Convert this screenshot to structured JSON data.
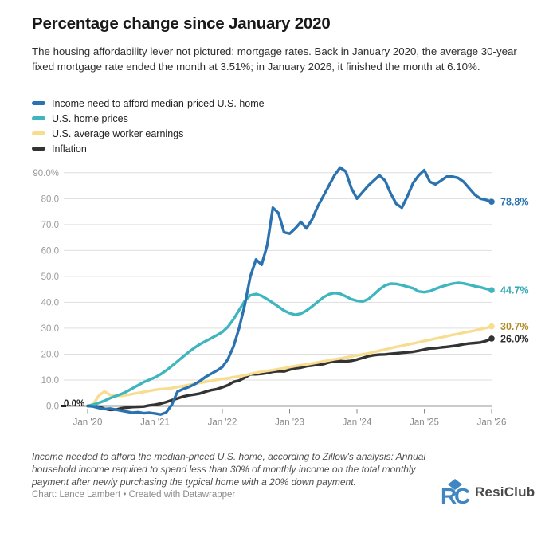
{
  "header": {
    "title": "Percentage change since January 2020",
    "subtitle": "The housing affordability lever not pictured: mortgage rates. Back in January 2020, the average 30-year fixed mortgage rate ended the month at 3.51%; in January 2026, it finished the month at 6.10%."
  },
  "legend": {
    "items": [
      {
        "label": "Income need to afford median-priced U.S. home",
        "color": "#2a72b0"
      },
      {
        "label": "U.S. home prices",
        "color": "#3eb5bf"
      },
      {
        "label": "U.S. average worker earnings",
        "color": "#f8dd90"
      },
      {
        "label": "Inflation",
        "color": "#333333"
      }
    ]
  },
  "chart_data": {
    "type": "line",
    "title": "Percentage change since January 2020",
    "x_unit": "months since Jan 2020",
    "x_tick_labels": [
      "Jan '20",
      "Jan '21",
      "Jan '22",
      "Jan '23",
      "Jan '24",
      "Jan '25",
      "Jan '26"
    ],
    "y_tick_labels": [
      "90.0%",
      "80.0",
      "70.0",
      "60.0",
      "50.0",
      "40.0",
      "30.0",
      "20.0",
      "10.0",
      "0.0"
    ],
    "ylim": [
      0,
      90
    ],
    "grid": true,
    "legend_position": "top-left",
    "start_label": "0.0%",
    "series": [
      {
        "name": "Income need to afford median-priced U.S. home",
        "color": "#2a72b0",
        "label_color": "#2a72b0",
        "end_label": "78.8%",
        "values": [
          0,
          -0.2,
          -0.8,
          -1.2,
          -1.0,
          -1.4,
          -1.8,
          -2.2,
          -2.6,
          -2.4,
          -2.8,
          -2.6,
          -2.9,
          -3.3,
          -2.5,
          0.5,
          5.5,
          6.5,
          7.3,
          8.3,
          9.6,
          11.2,
          12.4,
          13.6,
          15,
          18,
          23,
          30,
          39,
          50,
          56.5,
          54.5,
          62,
          76.5,
          74.5,
          67,
          66.5,
          68.5,
          71,
          68.5,
          72,
          77,
          81,
          85,
          89,
          92,
          90.5,
          84,
          80,
          82.5,
          85,
          87,
          89,
          87,
          82,
          78,
          76.5,
          81,
          86,
          89,
          91,
          86.5,
          85.5,
          87,
          88.5,
          88.5,
          88,
          86.5,
          84,
          81.5,
          80,
          79.5,
          78.8
        ]
      },
      {
        "name": "U.S. home prices",
        "color": "#3eb5bf",
        "label_color": "#2fa9b4",
        "end_label": "44.7%",
        "values": [
          0,
          0.5,
          1.2,
          2.0,
          3.0,
          3.8,
          4.6,
          5.6,
          6.8,
          8.0,
          9.2,
          10.1,
          11.0,
          12.2,
          13.7,
          15.4,
          17.2,
          19.0,
          20.8,
          22.4,
          23.8,
          25.0,
          26.1,
          27.3,
          28.5,
          30.5,
          33.5,
          37.0,
          40.5,
          42.7,
          43.2,
          42.5,
          41.2,
          39.8,
          38.3,
          36.8,
          35.8,
          35.2,
          35.6,
          36.8,
          38.4,
          40.2,
          41.9,
          43.1,
          43.6,
          43.3,
          42.3,
          41.2,
          40.6,
          40.3,
          41.2,
          43.0,
          45.0,
          46.5,
          47.2,
          47.1,
          46.6,
          46.0,
          45.4,
          44.2,
          43.9,
          44.3,
          45.2,
          46.0,
          46.6,
          47.2,
          47.5,
          47.3,
          46.8,
          46.2,
          45.8,
          45.2,
          44.7
        ]
      },
      {
        "name": "U.S. average worker earnings",
        "color": "#f8dd90",
        "label_color": "#b08c28",
        "end_label": "30.7%",
        "values": [
          0,
          0.7,
          4.0,
          5.6,
          4.2,
          3.9,
          3.9,
          4.2,
          4.6,
          5.0,
          5.4,
          5.8,
          6.2,
          6.5,
          6.6,
          6.9,
          7.3,
          7.7,
          8.1,
          8.5,
          8.9,
          9.3,
          9.7,
          10.1,
          10.4,
          10.7,
          11.1,
          11.4,
          11.8,
          12.3,
          12.8,
          13.2,
          13.5,
          13.8,
          14.2,
          14.5,
          15.0,
          15.4,
          15.7,
          16.0,
          16.4,
          16.8,
          17.2,
          17.6,
          18.0,
          18.3,
          18.7,
          19.1,
          19.5,
          19.9,
          20.3,
          20.8,
          21.3,
          21.8,
          22.3,
          22.8,
          23.2,
          23.7,
          24.1,
          24.6,
          25.1,
          25.5,
          26.0,
          26.4,
          26.9,
          27.4,
          27.8,
          28.3,
          28.7,
          29.1,
          29.6,
          30.1,
          30.7
        ]
      },
      {
        "name": "Inflation",
        "color": "#333333",
        "label_color": "#2e2e2e",
        "end_label": "26.0%",
        "values": [
          0,
          0.1,
          -0.3,
          -1.1,
          -1.5,
          -1.4,
          -0.9,
          -0.6,
          -0.4,
          -0.3,
          -0.2,
          0.2,
          0.5,
          0.9,
          1.5,
          2.2,
          2.9,
          3.6,
          4.1,
          4.4,
          4.8,
          5.5,
          6.1,
          6.5,
          7.2,
          8.0,
          9.3,
          9.8,
          10.9,
          12.2,
          12.2,
          12.4,
          12.7,
          13.2,
          13.4,
          13.3,
          14.0,
          14.5,
          14.8,
          15.3,
          15.6,
          15.9,
          16.1,
          16.8,
          17.2,
          17.3,
          17.2,
          17.4,
          17.9,
          18.5,
          19.2,
          19.6,
          19.8,
          19.9,
          20.1,
          20.3,
          20.5,
          20.7,
          20.9,
          21.3,
          21.8,
          22.2,
          22.3,
          22.6,
          22.8,
          23.1,
          23.4,
          23.8,
          24.1,
          24.3,
          24.5,
          25.1,
          26.0
        ]
      }
    ]
  },
  "footer": {
    "note": "Income needed to afford the median-priced U.S. home, according to Zillow's analysis: Annual household income required to spend less than 30% of monthly income on the total monthly payment after newly purchasing the typical home with a 20% down payment.",
    "credit": "Chart: Lance Lambert • Created with Datawrapper"
  },
  "logo": {
    "text": "ResiClub",
    "color": "#4086c2"
  }
}
